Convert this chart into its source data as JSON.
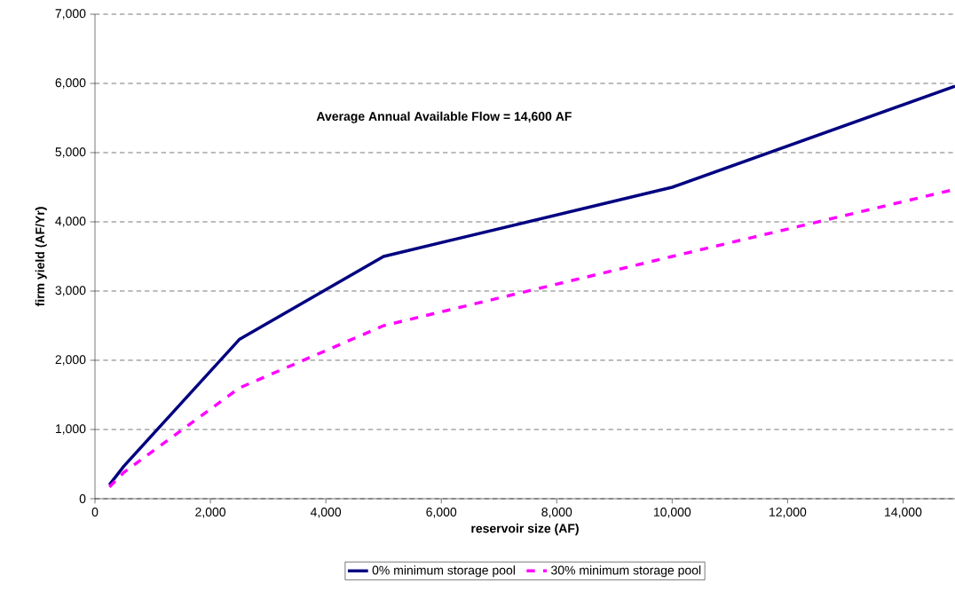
{
  "chart_data": {
    "type": "line",
    "xlabel": "reservoir size (AF)",
    "ylabel": "firm yield (AF/Yr)",
    "annotations": [
      "Average Annual Available Flow = 14,600 AF"
    ],
    "xlim": [
      0,
      14900
    ],
    "ylim": [
      0,
      7000
    ],
    "xticks": [
      {
        "value": 0,
        "label": "0"
      },
      {
        "value": 2000,
        "label": "2,000"
      },
      {
        "value": 4000,
        "label": "4,000"
      },
      {
        "value": 6000,
        "label": "6,000"
      },
      {
        "value": 8000,
        "label": "8,000"
      },
      {
        "value": 10000,
        "label": "10,000"
      },
      {
        "value": 12000,
        "label": "12,000"
      },
      {
        "value": 14000,
        "label": "14,000"
      }
    ],
    "yticks": [
      {
        "value": 0,
        "label": "0"
      },
      {
        "value": 1000,
        "label": "1,000"
      },
      {
        "value": 2000,
        "label": "2,000"
      },
      {
        "value": 3000,
        "label": "3,000"
      },
      {
        "value": 4000,
        "label": "4,000"
      },
      {
        "value": 5000,
        "label": "5,000"
      },
      {
        "value": 6000,
        "label": "6,000"
      },
      {
        "value": 7000,
        "label": "7,000"
      }
    ],
    "grid": "y",
    "legend": "bottom",
    "marker": "none",
    "series": [
      {
        "name": "0% minimum storage pool",
        "color": "#000080",
        "line_style": "solid",
        "x": [
          250,
          500,
          2500,
          5000,
          10000,
          14900
        ],
        "values": [
          200,
          470,
          2300,
          3500,
          4500,
          5960
        ]
      },
      {
        "name": "30% minimum storage pool",
        "color": "#ff00ff",
        "line_style": "dashed",
        "x": [
          250,
          500,
          2500,
          5000,
          7500,
          10000,
          14900
        ],
        "values": [
          170,
          380,
          1600,
          2500,
          3000,
          3500,
          4470
        ]
      }
    ]
  }
}
